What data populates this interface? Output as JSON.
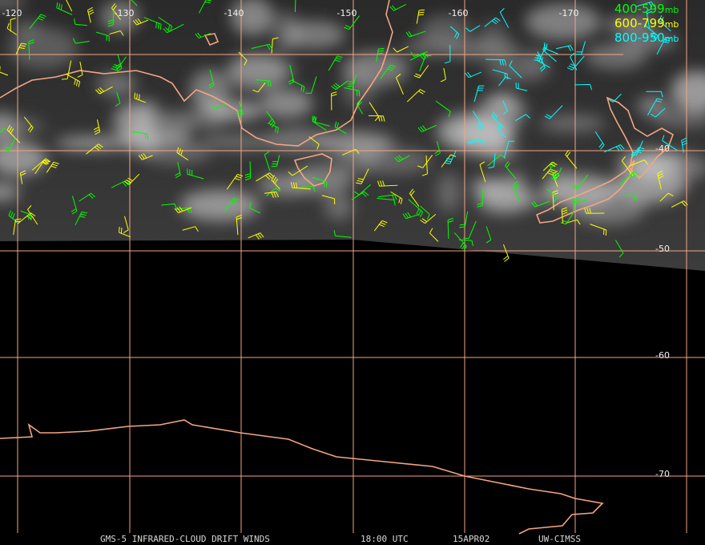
{
  "map": {
    "longitude_labels": [
      "-120",
      "-130",
      "-140",
      "-150",
      "-160",
      "-170"
    ],
    "latitude_labels": [
      "-40",
      "-50",
      "-60",
      "-70"
    ],
    "legend": [
      {
        "range": "400-599",
        "unit": "mb",
        "color": "#00ff00"
      },
      {
        "range": "600-799",
        "unit": "mb",
        "color": "#ffff00"
      },
      {
        "range": "800-950",
        "unit": "mb",
        "color": "#00ffff"
      }
    ],
    "footer": [
      "GMS-5 INFRARED-CLOUD DRIFT WINDS",
      "18:00 UTC",
      "15APR02",
      "UW-CIMSS"
    ]
  }
}
